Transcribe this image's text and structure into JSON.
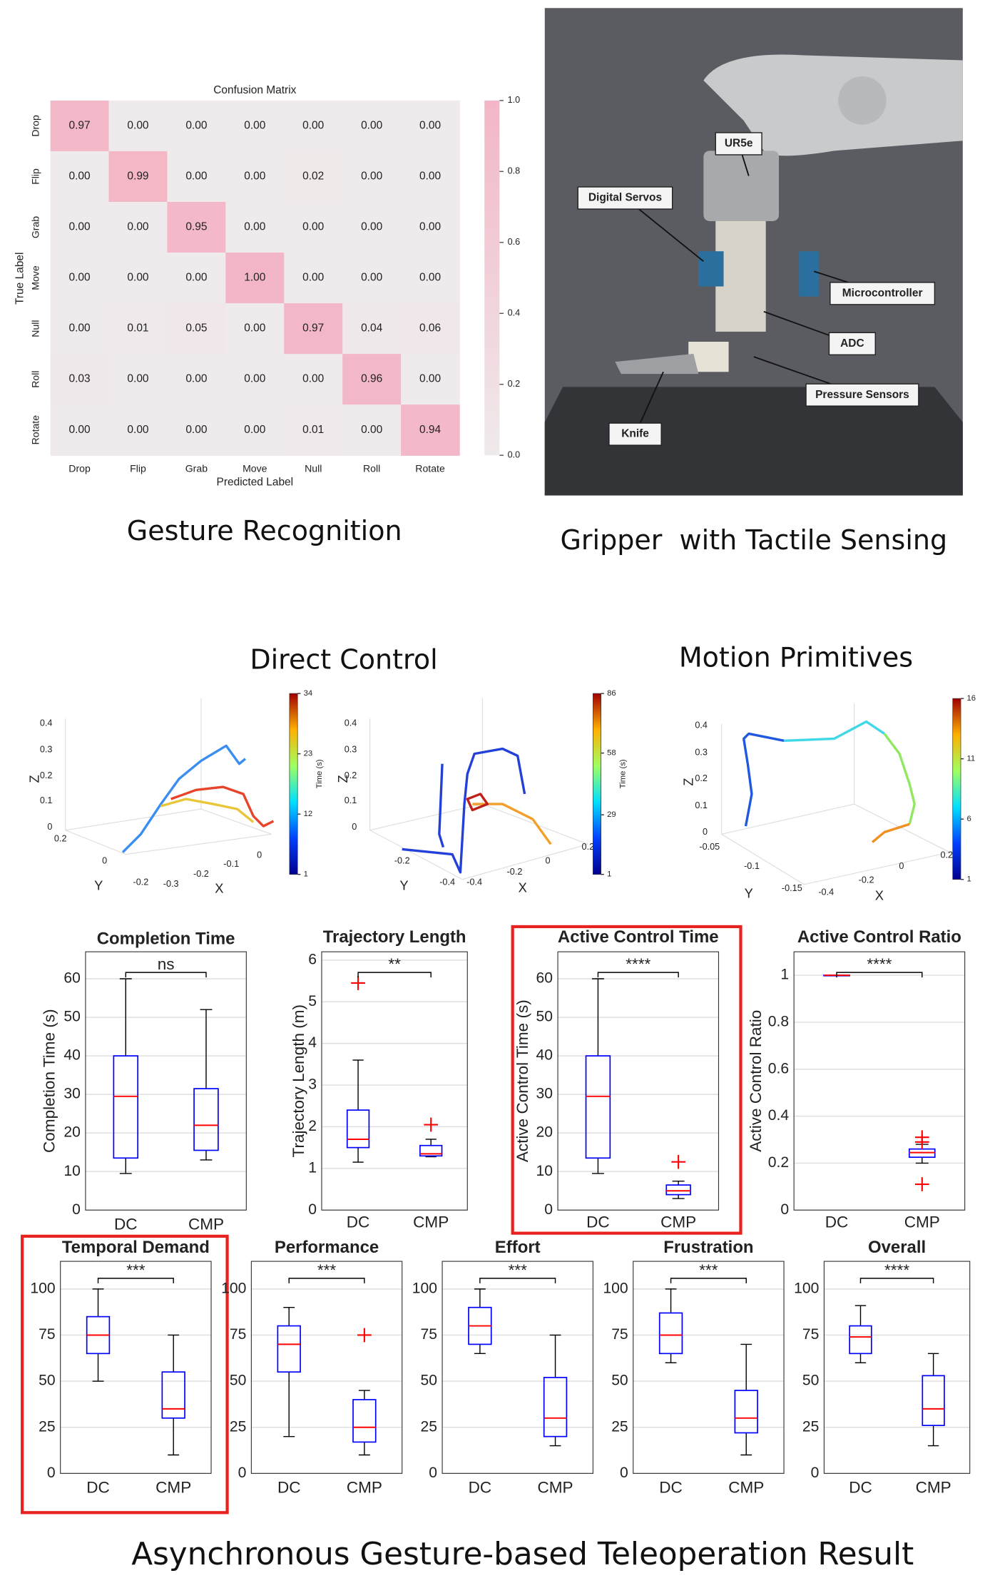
{
  "captions": {
    "gesture": "Gesture Recognition",
    "gripper": "Gripper  with Tactile Sensing",
    "direct": "Direct Control",
    "primitives": "Motion Primitives",
    "result": "Asynchronous Gesture-based Teleoperation Result"
  },
  "photo": {
    "labels": [
      "UR5e",
      "Digital Servos",
      "Microcontroller",
      "ADC",
      "Pressure Sensors",
      "Knife"
    ]
  },
  "trajectory_plots": [
    {
      "zlabel": "Z",
      "ylabel": "Y",
      "xlabel": "X",
      "zticks": [
        0,
        0.1,
        0.2,
        0.3,
        0.4
      ],
      "yticks": [
        0.2,
        0,
        -0.2
      ],
      "xticks": [
        -0.3,
        -0.2,
        -0.1,
        0
      ],
      "cticks": [
        1,
        12,
        23,
        34
      ],
      "clabel": "Time (s)"
    },
    {
      "zlabel": "Z",
      "ylabel": "Y",
      "xlabel": "X",
      "zticks": [
        0,
        0.1,
        0.2,
        0.3,
        0.4
      ],
      "yticks": [
        -0.2,
        -0.4
      ],
      "xticks": [
        -0.4,
        -0.2,
        0,
        0.2
      ],
      "cticks": [
        1,
        29,
        58,
        86
      ],
      "clabel": "Time (s)"
    },
    {
      "zlabel": "Z",
      "ylabel": "Y",
      "xlabel": "X",
      "zticks": [
        0,
        0.1,
        0.2,
        0.3,
        0.4
      ],
      "yticks": [
        -0.05,
        -0.1,
        -0.15
      ],
      "xticks": [
        -0.4,
        -0.2,
        0,
        0.2
      ],
      "cticks": [
        1,
        6,
        11,
        16
      ]
    }
  ],
  "chart_data": [
    {
      "type": "heatmap",
      "title": "Confusion Matrix",
      "xlabel": "Predicted Label",
      "ylabel": "True Label",
      "categories": [
        "Drop",
        "Flip",
        "Grab",
        "Move",
        "Null",
        "Roll",
        "Rotate"
      ],
      "rows": [
        "Drop",
        "Flip",
        "Grab",
        "Move",
        "Null",
        "Roll",
        "Rotate"
      ],
      "z": [
        [
          0.97,
          0,
          0,
          0,
          0,
          0,
          0
        ],
        [
          0,
          0.99,
          0,
          0,
          0.02,
          0,
          0
        ],
        [
          0,
          0,
          0.95,
          0,
          0,
          0,
          0
        ],
        [
          0,
          0,
          0,
          1,
          0,
          0,
          0
        ],
        [
          0,
          0.01,
          0.05,
          0,
          0.97,
          0.04,
          0.06
        ],
        [
          0.03,
          0,
          0,
          0,
          0,
          0.96,
          0
        ],
        [
          0,
          0,
          0,
          0,
          0.01,
          0,
          0.94
        ]
      ],
      "value_labels": [
        [
          "0.97",
          "0.00",
          "0.00",
          "0.00",
          "0.00",
          "0.00",
          "0.00"
        ],
        [
          "0.00",
          "0.99",
          "0.00",
          "0.00",
          "0.02",
          "0.00",
          "0.00"
        ],
        [
          "0.00",
          "0.00",
          "0.95",
          "0.00",
          "0.00",
          "0.00",
          "0.00"
        ],
        [
          "0.00",
          "0.00",
          "0.00",
          "1.00",
          "0.00",
          "0.00",
          "0.00"
        ],
        [
          "0.00",
          "0.01",
          "0.05",
          "0.00",
          "0.97",
          "0.04",
          "0.06"
        ],
        [
          "0.03",
          "0.00",
          "0.00",
          "0.00",
          "0.00",
          "0.96",
          "0.00"
        ],
        [
          "0.00",
          "0.00",
          "0.00",
          "0.00",
          "0.01",
          "0.00",
          "0.94"
        ]
      ],
      "clim": [
        0,
        1
      ],
      "cticks": [
        {
          "value": 0,
          "label": "0.0"
        },
        {
          "value": 0.2,
          "label": "0.2"
        },
        {
          "value": 0.4,
          "label": "0.4"
        },
        {
          "value": 0.6,
          "label": "0.6"
        },
        {
          "value": 0.8,
          "label": "0.8"
        },
        {
          "value": 1,
          "label": "1.0"
        }
      ],
      "colors": [
        "#efeaeb",
        "#f3b6c6"
      ]
    },
    {
      "type": "box",
      "title": "Completion Time",
      "ylabel": "Completion Time (s)",
      "categories": [
        "DC",
        "CMP"
      ],
      "significance": "ns",
      "stats": [
        {
          "whislo": 9.5,
          "q1": 13.5,
          "med": 29.5,
          "q3": 40,
          "whishi": 60
        },
        {
          "whislo": 13,
          "q1": 15.5,
          "med": 22,
          "q3": 31.5,
          "whishi": 52
        }
      ],
      "ylim": [
        0,
        67
      ],
      "yticks": [
        0,
        10,
        20,
        30,
        40,
        50,
        60
      ],
      "grid": true,
      "box_color": "#0000ff",
      "median_color": "#ff0000",
      "flier_color": "#ff0000"
    },
    {
      "type": "box",
      "title": "Trajectory Length",
      "ylabel": "Trajectory Length (m)",
      "categories": [
        "DC",
        "CMP"
      ],
      "significance": "**",
      "stats": [
        {
          "whislo": 1.15,
          "q1": 1.5,
          "med": 1.7,
          "q3": 2.4,
          "whishi": 3.6,
          "fliers": [
            5.45
          ]
        },
        {
          "whislo": 1.28,
          "q1": 1.3,
          "med": 1.35,
          "q3": 1.55,
          "whishi": 1.7,
          "fliers": [
            2.05
          ]
        }
      ],
      "ylim": [
        0,
        6.2
      ],
      "yticks": [
        0,
        1,
        2,
        3,
        4,
        5,
        6
      ],
      "grid": true,
      "box_color": "#0000ff",
      "median_color": "#ff0000",
      "flier_color": "#ff0000"
    },
    {
      "type": "box",
      "title": "Active Control Time",
      "ylabel": "Active Control Time (s)",
      "categories": [
        "DC",
        "CMP"
      ],
      "significance": "****",
      "stats": [
        {
          "whislo": 9.5,
          "q1": 13.5,
          "med": 29.5,
          "q3": 40,
          "whishi": 60
        },
        {
          "whislo": 3,
          "q1": 4,
          "med": 5,
          "q3": 6.5,
          "whishi": 7.5,
          "fliers": [
            12.5
          ]
        }
      ],
      "ylim": [
        0,
        67
      ],
      "yticks": [
        0,
        10,
        20,
        30,
        40,
        50,
        60
      ],
      "grid": true,
      "highlight": true,
      "highlight_color": "#e8221f",
      "box_color": "#0000ff",
      "median_color": "#ff0000",
      "flier_color": "#ff0000"
    },
    {
      "type": "box",
      "title": "Active Control Ratio",
      "ylabel": "Active Control Ratio",
      "categories": [
        "DC",
        "CMP"
      ],
      "significance": "****",
      "stats": [
        {
          "whislo": 1,
          "q1": 1,
          "med": 1,
          "q3": 1,
          "whishi": 1
        },
        {
          "whislo": 0.2,
          "q1": 0.225,
          "med": 0.245,
          "q3": 0.26,
          "whishi": 0.28,
          "fliers": [
            0.31,
            0.29,
            0.11
          ]
        }
      ],
      "ylim": [
        0,
        1.1
      ],
      "yticks": [
        0,
        0.2,
        0.4,
        0.6,
        0.8,
        1
      ],
      "grid": true,
      "box_color": "#0000ff",
      "median_color": "#ff0000",
      "flier_color": "#ff0000"
    },
    {
      "type": "box",
      "title": "Temporal Demand",
      "categories": [
        "DC",
        "CMP"
      ],
      "significance": "***",
      "stats": [
        {
          "whislo": 50,
          "q1": 65,
          "med": 75,
          "q3": 85,
          "whishi": 100
        },
        {
          "whislo": 10,
          "q1": 30,
          "med": 35,
          "q3": 55,
          "whishi": 75
        }
      ],
      "ylim": [
        0,
        115
      ],
      "yticks": [
        0,
        25,
        50,
        75,
        100
      ],
      "grid": true,
      "highlight": true,
      "highlight_color": "#e8221f",
      "box_color": "#0000ff",
      "median_color": "#ff0000",
      "flier_color": "#ff0000"
    },
    {
      "type": "box",
      "title": "Performance",
      "categories": [
        "DC",
        "CMP"
      ],
      "significance": "***",
      "stats": [
        {
          "whislo": 20,
          "q1": 55,
          "med": 70,
          "q3": 80,
          "whishi": 90
        },
        {
          "whislo": 10,
          "q1": 17,
          "med": 25,
          "q3": 40,
          "whishi": 45,
          "fliers": [
            75
          ]
        }
      ],
      "ylim": [
        0,
        115
      ],
      "yticks": [
        0,
        25,
        50,
        75,
        100
      ],
      "grid": true,
      "box_color": "#0000ff",
      "median_color": "#ff0000",
      "flier_color": "#ff0000"
    },
    {
      "type": "box",
      "title": "Effort",
      "categories": [
        "DC",
        "CMP"
      ],
      "significance": "***",
      "stats": [
        {
          "whislo": 65,
          "q1": 70,
          "med": 80,
          "q3": 90,
          "whishi": 100
        },
        {
          "whislo": 15,
          "q1": 20,
          "med": 30,
          "q3": 52,
          "whishi": 75
        }
      ],
      "ylim": [
        0,
        115
      ],
      "yticks": [
        0,
        25,
        50,
        75,
        100
      ],
      "grid": true,
      "box_color": "#0000ff",
      "median_color": "#ff0000",
      "flier_color": "#ff0000"
    },
    {
      "type": "box",
      "title": "Frustration",
      "categories": [
        "DC",
        "CMP"
      ],
      "significance": "***",
      "stats": [
        {
          "whislo": 60,
          "q1": 65,
          "med": 75,
          "q3": 87,
          "whishi": 100
        },
        {
          "whislo": 10,
          "q1": 22,
          "med": 30,
          "q3": 45,
          "whishi": 70
        }
      ],
      "ylim": [
        0,
        115
      ],
      "yticks": [
        0,
        25,
        50,
        75,
        100
      ],
      "grid": true,
      "box_color": "#0000ff",
      "median_color": "#ff0000",
      "flier_color": "#ff0000"
    },
    {
      "type": "box",
      "title": "Overall",
      "categories": [
        "DC",
        "CMP"
      ],
      "significance": "****",
      "stats": [
        {
          "whislo": 60,
          "q1": 65,
          "med": 74,
          "q3": 80,
          "whishi": 91
        },
        {
          "whislo": 15,
          "q1": 26,
          "med": 35,
          "q3": 53,
          "whishi": 65
        }
      ],
      "ylim": [
        0,
        115
      ],
      "yticks": [
        0,
        25,
        50,
        75,
        100
      ],
      "grid": true,
      "box_color": "#0000ff",
      "median_color": "#ff0000",
      "flier_color": "#ff0000"
    }
  ]
}
